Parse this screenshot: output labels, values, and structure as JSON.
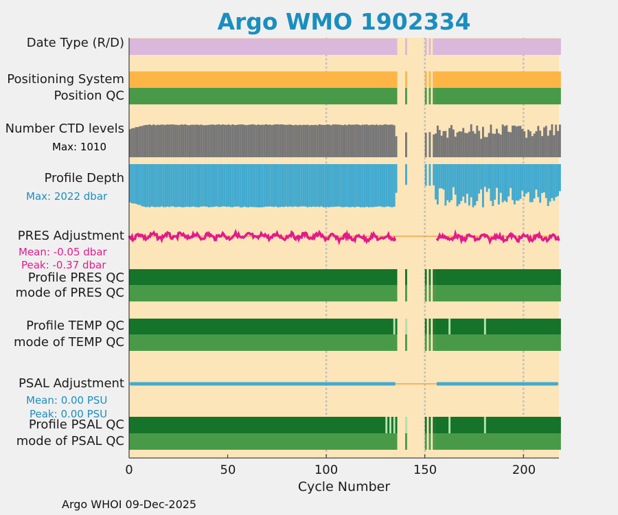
{
  "title": "Argo WMO 1902334",
  "footer": "Argo WHOI 09-Dec-2025",
  "colors": {
    "background": "#fce5b9",
    "figure": "#f0f0f0",
    "title": "#1a8ebf",
    "date_type": "#d9b8db",
    "positioning": "#fdb646",
    "qc_good": "#499a48",
    "qc_dark": "#15732a",
    "qc_light": "#b9e3b0",
    "ctd": "#777777",
    "depth": "#43aacf",
    "pres_adj": "#e31a8b",
    "psal_adj": "#43aacf",
    "axis_orange": "#f5a142",
    "grid": "#c0c0c0"
  },
  "rows": {
    "date_type": "Date Type (R/D)",
    "positioning": "Positioning System",
    "position_qc": "Position QC",
    "ctd": "Number CTD levels",
    "ctd_max": "Max: 1010",
    "depth": "Profile Depth",
    "depth_max": "Max: 2022 dbar",
    "pres_adj": "PRES Adjustment",
    "pres_mean": "Mean: -0.05 dbar",
    "pres_peak": "Peak: -0.37 dbar",
    "pres_qc": "Profile PRES QC",
    "pres_mode": "mode of PRES QC",
    "temp_qc": "Profile TEMP QC",
    "temp_mode": "mode of TEMP QC",
    "psal_adj": "PSAL Adjustment",
    "psal_mean": "Mean: 0.00 PSU",
    "psal_peak": "Peak: 0.00 PSU",
    "psal_qc": "Profile PSAL QC",
    "psal_mode": "mode of PSAL QC"
  },
  "chart_data": {
    "type": "bar",
    "title": "Argo WMO 1902334",
    "xlabel": "Cycle Number",
    "ylabel": "",
    "xlim": [
      0,
      218
    ],
    "xticks": [
      "0",
      "50",
      "100",
      "150",
      "200"
    ],
    "xtick_values": [
      0,
      50,
      100,
      150,
      200
    ],
    "gridlines_x": [
      100,
      150,
      200
    ],
    "cycle_segments": [
      [
        0,
        135
      ],
      [
        140,
        140
      ],
      [
        150,
        150
      ],
      [
        152,
        152
      ],
      [
        154,
        154
      ],
      [
        155,
        218
      ]
    ],
    "series": [
      {
        "name": "Number CTD levels",
        "max": 1010
      },
      {
        "name": "Profile Depth",
        "max": 2022,
        "unit": "dbar"
      },
      {
        "name": "PRES Adjustment",
        "mean": -0.05,
        "peak": -0.37,
        "unit": "dbar"
      },
      {
        "name": "PSAL Adjustment",
        "mean": 0.0,
        "peak": 0.0,
        "unit": "PSU"
      }
    ],
    "temp_qc_light_cycles": [
      134,
      140,
      162,
      180
    ],
    "psal_qc_light_cycles": [
      130,
      132,
      134,
      140,
      162,
      180
    ]
  }
}
